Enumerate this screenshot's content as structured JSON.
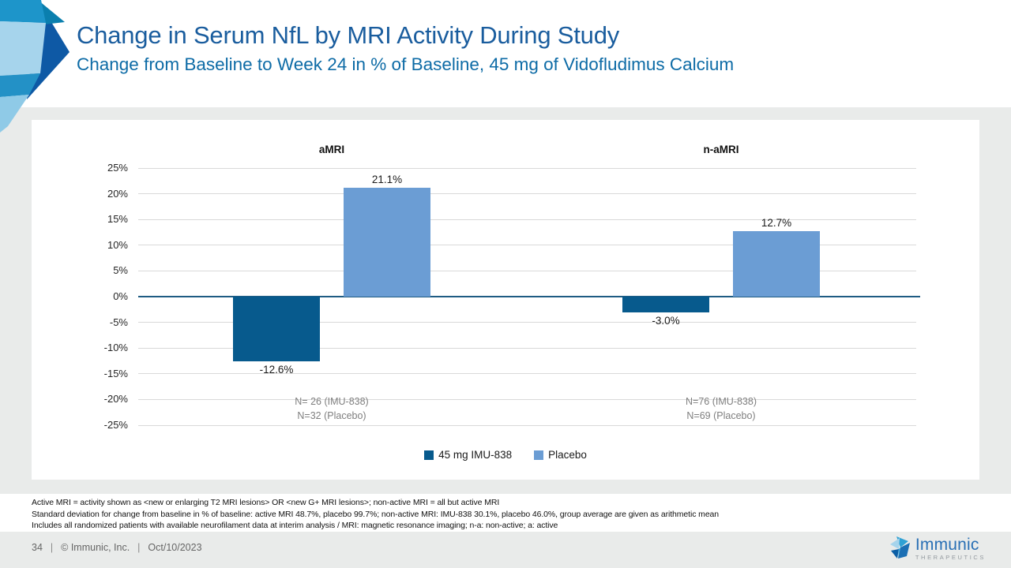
{
  "slide": {
    "title": "Change in Serum NfL by MRI Activity During Study",
    "subtitle": "Change from Baseline to Week 24 in % of Baseline, 45 mg of Vidofludimus Calcium",
    "page_number": "34",
    "separator": "|",
    "copyright": "© Immunic, Inc.",
    "date": "Oct/10/2023"
  },
  "footnotes": [
    "Active MRI = activity shown as <new or enlarging T2 MRI lesions> OR <new G+ MRI lesions>; non-active MRI = all but active MRI",
    "Standard deviation for change from baseline in % of baseline: active MRI 48.7%, placebo 99.7%; non-active MRI: IMU-838 30.1%, placebo 46.0%, group average are given as arithmetic mean",
    "Includes all randomized patients with available neurofilament data at interim analysis / MRI: magnetic resonance imaging; n-a: non-active; a: active"
  ],
  "brand": {
    "name": "Immunic",
    "sub": "THERAPEUTICS",
    "gem_icon": "immunic-gem-icon"
  },
  "colors": {
    "title_blue": "#1a5d9e",
    "subtitle_blue": "#0d6ba6",
    "imu_bar": "#075a8d",
    "placebo_bar": "#6b9dd4",
    "zero_axis": "#1f5c83",
    "gridline": "#d9d9d9",
    "slide_gray": "#e9ebea",
    "note_gray": "#7f7f7f"
  },
  "chart_data": {
    "type": "bar",
    "categories": [
      "aMRI",
      "n-aMRI"
    ],
    "series": [
      {
        "name": "45 mg IMU-838",
        "color": "#075a8d",
        "values": [
          -12.6,
          -3.0
        ]
      },
      {
        "name": "Placebo",
        "color": "#6b9dd4",
        "values": [
          21.1,
          12.7
        ]
      }
    ],
    "value_labels": [
      [
        "-12.6%",
        "-3.0%"
      ],
      [
        "21.1%",
        "12.7%"
      ]
    ],
    "group_notes": [
      [
        "N= 26 (IMU-838)",
        "N=32 (Placebo)"
      ],
      [
        "N=76 (IMU-838)",
        "N=69 (Placebo)"
      ]
    ],
    "y_ticks": [
      25,
      20,
      15,
      10,
      5,
      0,
      -5,
      -10,
      -15,
      -20,
      -25
    ],
    "y_tick_labels": [
      "25%",
      "20%",
      "15%",
      "10%",
      "5%",
      "0%",
      "-5%",
      "-10%",
      "-15%",
      "-20%",
      "-25%"
    ],
    "ylim": [
      -25,
      25
    ],
    "grid": true,
    "legend_position": "bottom"
  }
}
